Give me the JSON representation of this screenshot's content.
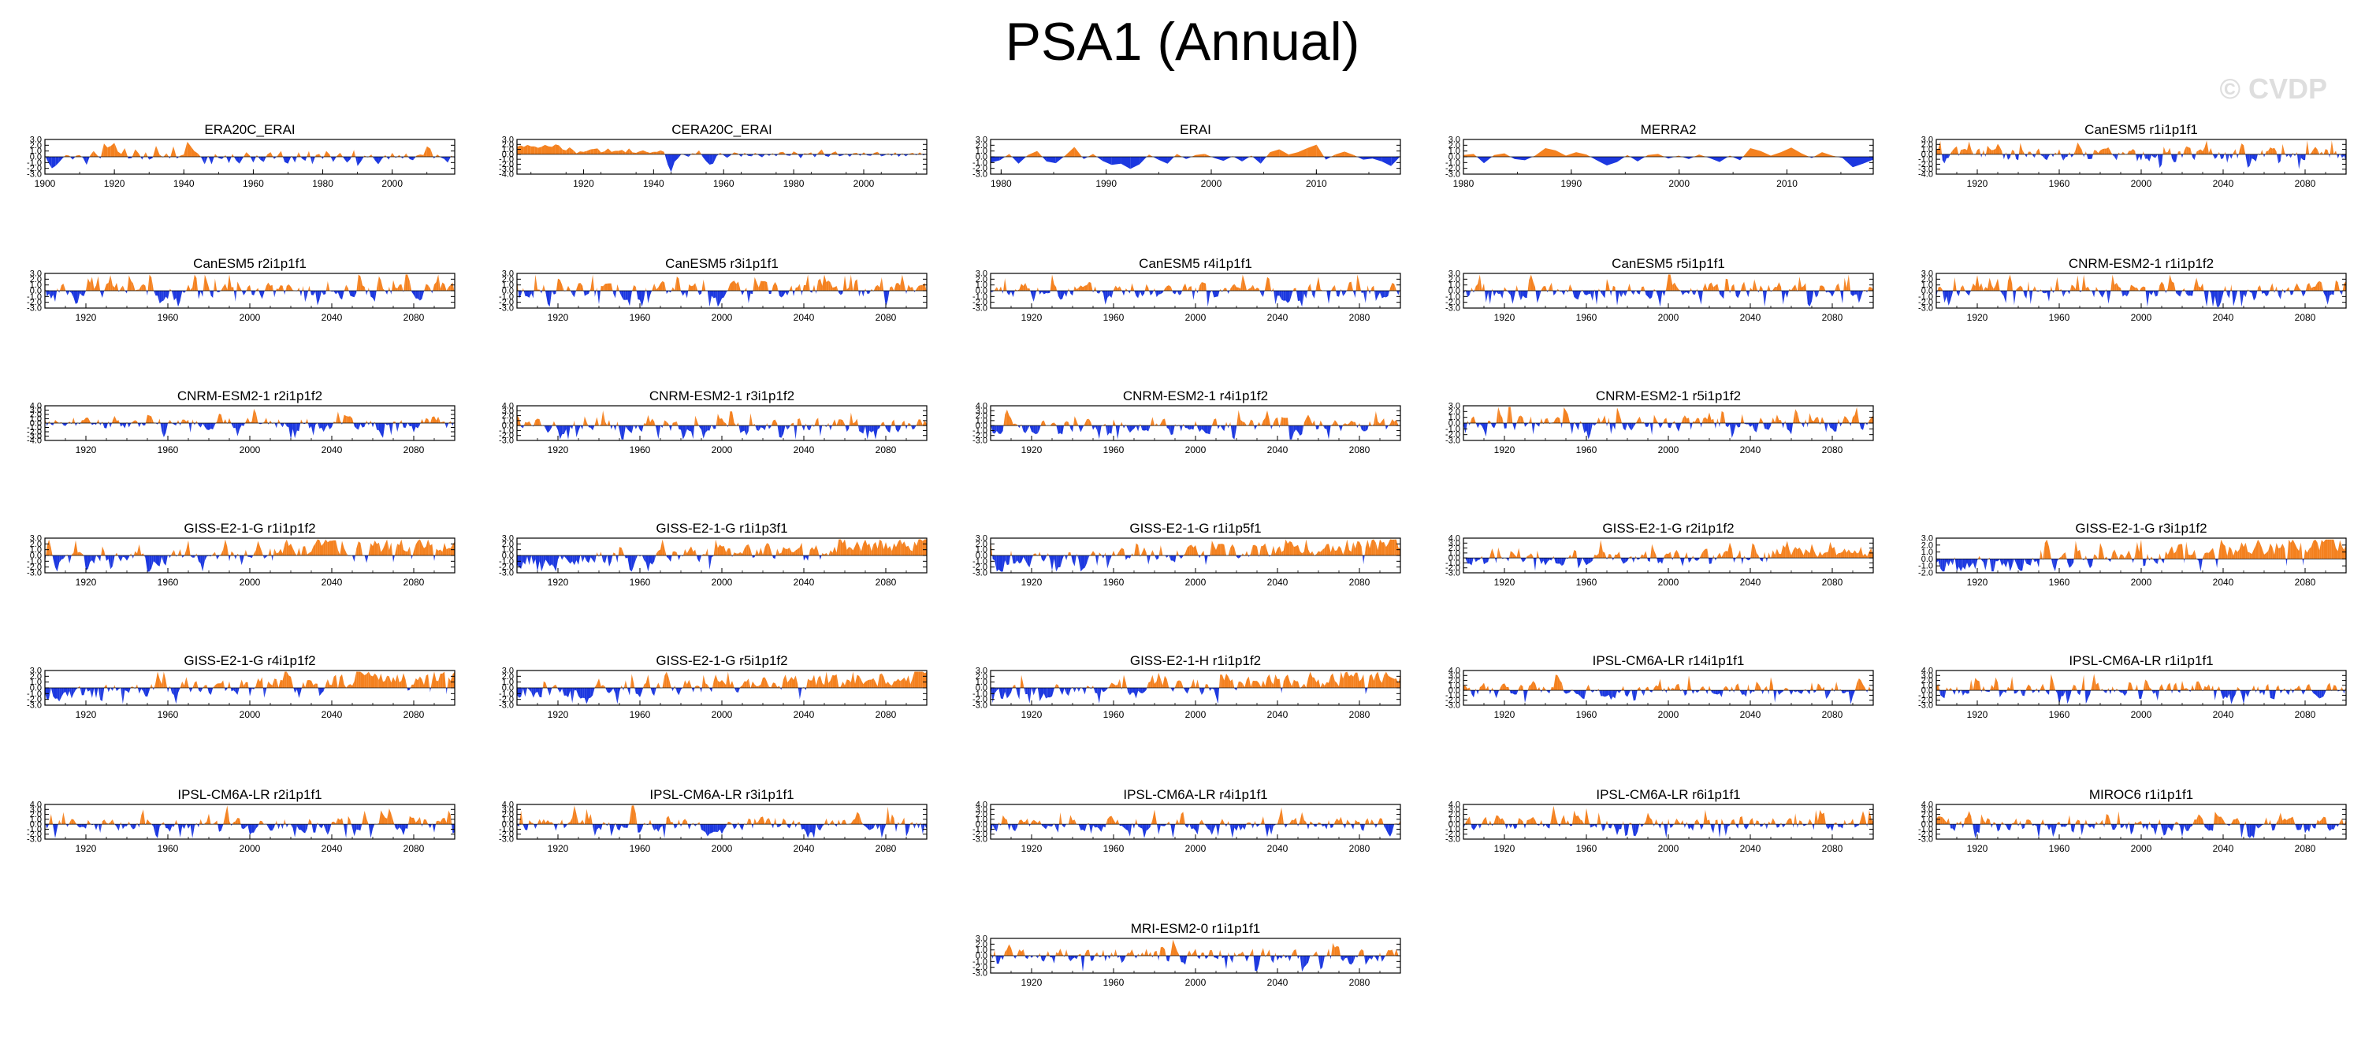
{
  "title": "PSA1 (Annual)",
  "watermark": "© CVDP",
  "colors": {
    "positive": "#f4811f",
    "negative": "#1c38e0",
    "frame": "#000000"
  },
  "chart_data": [
    {
      "type": "area",
      "title": "ERA20C_ERAI",
      "x_range": [
        1900,
        2018
      ],
      "xticks": [
        "1900",
        "1920",
        "1940",
        "1960",
        "1980",
        "2000"
      ],
      "ylim": [
        -3,
        3
      ],
      "yticks": [
        "3.0",
        "2.0",
        "1.0",
        "0.0",
        "-1.0",
        "-2.0",
        "-3.0"
      ],
      "values": [
        0.2,
        -1.0,
        -2.0,
        -1.6,
        -1.0,
        -0.3,
        0.3,
        0.2,
        -0.5,
        0.2,
        0.3,
        -0.2,
        -1.4,
        0.2,
        1.0,
        0.3,
        -0.3,
        2.3,
        1.6,
        1.9,
        2.4,
        0.9,
        0.5,
        1.5,
        -0.3,
        -0.2,
        1.3,
        0.6,
        -0.5,
        0.8,
        -0.5,
        -0.2,
        1.9,
        0.4,
        -0.1,
        0.6,
        -0.3,
        1.8,
        -0.3,
        0.2,
        0.4,
        2.6,
        1.8,
        1.0,
        0.6,
        -0.1,
        -1.3,
        0.2,
        -1.3,
        0.5,
        -0.2,
        -0.4,
        0.3,
        -1.1,
        0.5,
        -0.6,
        -1.2,
        -0.2,
        0.8,
        0.2,
        -1.0,
        0.3,
        -0.5,
        -0.9,
        0.4,
        0.8,
        -0.4,
        0.2,
        1.0,
        -0.9,
        -1.2,
        0.2,
        -1.0,
        0.8,
        -0.3,
        -0.7,
        1.0,
        -1.3,
        0.3,
        0.5,
        -0.4,
        1.0,
        0.4,
        -0.9,
        0.1,
        0.7,
        -0.2,
        -1.0,
        -0.4,
        1.2,
        -1.6,
        -0.8,
        0.2,
        -0.1,
        0.4,
        -0.6,
        -1.3,
        -0.4,
        0.3,
        -0.5,
        0.7,
        -0.2,
        0.3,
        -0.3,
        0.6,
        -0.4,
        -0.6,
        0.2,
        0.4,
        0.3,
        1.8,
        1.4,
        -0.3,
        0.4,
        -0.1,
        -0.4,
        -1.0,
        0.2,
        -0.2
      ]
    },
    {
      "type": "area",
      "title": "CERA20C_ERAI",
      "x_range": [
        1901,
        2018
      ],
      "xticks": [
        "1920",
        "1940",
        "1960",
        "1980",
        "2000"
      ],
      "ylim": [
        -4,
        3
      ],
      "yticks": [
        "3.0",
        "2.0",
        "1.0",
        "0.0",
        "-1.0",
        "-2.0",
        "-3.0",
        "-4.0"
      ],
      "values": [
        1.5,
        1.8,
        1.5,
        1.9,
        1.6,
        1.6,
        1.3,
        1.5,
        1.9,
        1.6,
        1.5,
        2.0,
        1.8,
        1.0,
        0.8,
        1.4,
        0.9,
        0.2,
        0.6,
        0.5,
        0.7,
        1.0,
        1.1,
        1.2,
        0.4,
        0.6,
        1.2,
        0.5,
        0.7,
        0.7,
        0.9,
        0.4,
        1.2,
        0.4,
        0.3,
        0.6,
        0.8,
        0.5,
        0.3,
        0.5,
        0.5,
        0.8,
        0.5,
        -2.0,
        -3.6,
        -1.5,
        -0.8,
        0.1,
        -0.2,
        -0.5,
        0.2,
        0.1,
        0.8,
        -0.5,
        -1.4,
        -2.1,
        -1.9,
        -0.4,
        0.3,
        -0.2,
        -0.7,
        -0.2,
        0.4,
        0.2,
        -0.5,
        0.3,
        -0.3,
        -0.4,
        0.3,
        -0.2,
        -0.6,
        0.1,
        -0.3,
        0.2,
        -0.4,
        0.4,
        0.5,
        -0.2,
        -0.3,
        0.6,
        0.2,
        -0.8,
        0.2,
        0.1,
        0.4,
        -0.6,
        0.3,
        1.0,
        -0.3,
        -0.5,
        0.3,
        0.6,
        -0.4,
        -0.2,
        0.2,
        -0.5,
        0.2,
        0.3,
        -0.3,
        0.4,
        -0.2,
        -0.3,
        0.3,
        0.5,
        -0.4,
        -0.2,
        0.2,
        -0.3,
        0.4,
        -0.5,
        0.2,
        -0.4,
        0.1,
        0.3,
        -0.2,
        0.4,
        -0.2,
        0.1
      ]
    },
    {
      "type": "area",
      "title": "ERAI",
      "x_range": [
        1979,
        2018
      ],
      "xticks": [
        "1980",
        "1990",
        "2000",
        "2010"
      ],
      "ylim": [
        -3,
        3
      ],
      "yticks": [
        "3.0",
        "2.0",
        "1.0",
        "0.0",
        "-1.0",
        "-2.0",
        "-3.0"
      ],
      "values": [
        -1.0,
        -0.6,
        0.5,
        -1.2,
        0.3,
        1.0,
        -0.8,
        -1.1,
        0.2,
        1.7,
        -0.4,
        0.5,
        -0.7,
        -1.4,
        -1.2,
        -2.1,
        -1.3,
        0.4,
        -0.5,
        -1.2,
        0.5,
        -0.4,
        0.3,
        0.5,
        -0.2,
        -0.7,
        0.1,
        -0.8,
        0.2,
        -1.2,
        0.8,
        1.3,
        0.4,
        0.8,
        1.5,
        2.1,
        -0.5,
        0.4,
        0.9,
        0.3,
        -0.5,
        -0.3,
        -0.8,
        -1.6,
        0.1
      ]
    },
    {
      "type": "area",
      "title": "MERRA2",
      "x_range": [
        1980,
        2018
      ],
      "xticks": [
        "1980",
        "1990",
        "2000",
        "2010"
      ],
      "ylim": [
        -3,
        3
      ],
      "yticks": [
        "3.0",
        "2.0",
        "1.0",
        "0.0",
        "-1.0",
        "-2.0",
        "-3.0"
      ],
      "values": [
        0.3,
        0.5,
        -1.1,
        0.3,
        0.6,
        -0.4,
        -0.6,
        0.2,
        1.5,
        1.1,
        0.2,
        0.8,
        0.4,
        -0.6,
        -1.5,
        -0.9,
        0.3,
        -0.8,
        0.3,
        0.5,
        -0.3,
        0.2,
        -0.4,
        0.4,
        -0.2,
        -0.9,
        0.2,
        -0.6,
        1.5,
        1.0,
        0.2,
        0.8,
        1.6,
        0.6,
        -0.2,
        0.8,
        0.2,
        -0.2,
        -1.8,
        -1.2,
        -0.5
      ]
    },
    {
      "type": "area",
      "title": "CanESM5 r1i1p1f1",
      "x_range": [
        1900,
        2100
      ],
      "xticks": [
        "1920",
        "1960",
        "2000",
        "2040",
        "2080"
      ],
      "ylim": [
        -4,
        3
      ],
      "yticks": [
        "3.0",
        "2.0",
        "1.0",
        "0.0",
        "-1.0",
        "-2.0",
        "-3.0",
        "-4.0"
      ],
      "seed": 5,
      "amp": 1.05,
      "trend": 0.0
    },
    {
      "type": "area",
      "title": "CanESM5 r2i1p1f1",
      "x_range": [
        1900,
        2100
      ],
      "xticks": [
        "1920",
        "1960",
        "2000",
        "2040",
        "2080"
      ],
      "ylim": [
        -3,
        3
      ],
      "yticks": [
        "3.0",
        "2.0",
        "1.0",
        "0.0",
        "-1.0",
        "-2.0",
        "-3.0"
      ],
      "seed": 6,
      "amp": 1.05,
      "trend": 0.0
    },
    {
      "type": "area",
      "title": "CanESM5 r3i1p1f1",
      "x_range": [
        1900,
        2100
      ],
      "xticks": [
        "1920",
        "1960",
        "2000",
        "2040",
        "2080"
      ],
      "ylim": [
        -3,
        3
      ],
      "yticks": [
        "3.0",
        "2.0",
        "1.0",
        "0.0",
        "-1.0",
        "-2.0",
        "-3.0"
      ],
      "seed": 7,
      "amp": 1.05,
      "trend": 0.0
    },
    {
      "type": "area",
      "title": "CanESM5 r4i1p1f1",
      "x_range": [
        1900,
        2100
      ],
      "xticks": [
        "1920",
        "1960",
        "2000",
        "2040",
        "2080"
      ],
      "ylim": [
        -3,
        3
      ],
      "yticks": [
        "3.0",
        "2.0",
        "1.0",
        "0.0",
        "-1.0",
        "-2.0",
        "-3.0"
      ],
      "seed": 8,
      "amp": 1.05,
      "trend": 0.0
    },
    {
      "type": "area",
      "title": "CanESM5 r5i1p1f1",
      "x_range": [
        1900,
        2100
      ],
      "xticks": [
        "1920",
        "1960",
        "2000",
        "2040",
        "2080"
      ],
      "ylim": [
        -3,
        3
      ],
      "yticks": [
        "3.0",
        "2.0",
        "1.0",
        "0.0",
        "-1.0",
        "-2.0",
        "-3.0"
      ],
      "seed": 9,
      "amp": 1.05,
      "trend": 0.0
    },
    {
      "type": "area",
      "title": "CNRM-ESM2-1 r1i1p1f2",
      "x_range": [
        1900,
        2100
      ],
      "xticks": [
        "1920",
        "1960",
        "2000",
        "2040",
        "2080"
      ],
      "ylim": [
        -3,
        3
      ],
      "yticks": [
        "3.0",
        "2.0",
        "1.0",
        "0.0",
        "-1.0",
        "-2.0",
        "-3.0"
      ],
      "seed": 10,
      "amp": 1.05,
      "trend": 0.0
    },
    {
      "type": "area",
      "title": "CNRM-ESM2-1 r2i1p1f2",
      "x_range": [
        1900,
        2100
      ],
      "xticks": [
        "1920",
        "1960",
        "2000",
        "2040",
        "2080"
      ],
      "ylim": [
        -4,
        4
      ],
      "yticks": [
        "4.0",
        "3.0",
        "2.0",
        "1.0",
        "0.0",
        "-1.0",
        "-2.0",
        "-3.0",
        "-4.0"
      ],
      "seed": 11,
      "amp": 1.1,
      "trend": 0.0
    },
    {
      "type": "area",
      "title": "CNRM-ESM2-1 r3i1p1f2",
      "x_range": [
        1900,
        2100
      ],
      "xticks": [
        "1920",
        "1960",
        "2000",
        "2040",
        "2080"
      ],
      "ylim": [
        -3,
        4
      ],
      "yticks": [
        "4.0",
        "3.0",
        "2.0",
        "1.0",
        "0.0",
        "-1.0",
        "-2.0",
        "-3.0"
      ],
      "seed": 12,
      "amp": 1.05,
      "trend": 0.0
    },
    {
      "type": "area",
      "title": "CNRM-ESM2-1 r4i1p1f2",
      "x_range": [
        1900,
        2100
      ],
      "xticks": [
        "1920",
        "1960",
        "2000",
        "2040",
        "2080"
      ],
      "ylim": [
        -3,
        4
      ],
      "yticks": [
        "4.0",
        "3.0",
        "2.0",
        "1.0",
        "0.0",
        "-1.0",
        "-2.0",
        "-3.0"
      ],
      "seed": 13,
      "amp": 1.05,
      "trend": 0.0
    },
    {
      "type": "area",
      "title": "CNRM-ESM2-1 r5i1p1f2",
      "x_range": [
        1900,
        2100
      ],
      "xticks": [
        "1920",
        "1960",
        "2000",
        "2040",
        "2080"
      ],
      "ylim": [
        -3,
        3
      ],
      "yticks": [
        "3.0",
        "2.0",
        "1.0",
        "0.0",
        "-1.0",
        "-2.0",
        "-3.0"
      ],
      "seed": 14,
      "amp": 1.05,
      "trend": 0.0
    },
    {
      "type": "area",
      "title": "GISS-E2-1-G r1i1p1f2",
      "x_range": [
        1900,
        2100
      ],
      "xticks": [
        "1920",
        "1960",
        "2000",
        "2040",
        "2080"
      ],
      "ylim": [
        -3,
        3
      ],
      "yticks": [
        "3.0",
        "2.0",
        "1.0",
        "0.0",
        "-1.0",
        "-2.0",
        "-3.0"
      ],
      "seed": 15,
      "amp": 1.0,
      "trend": 1.0
    },
    {
      "type": "area",
      "title": "GISS-E2-1-G r1i1p3f1",
      "x_range": [
        1900,
        2100
      ],
      "xticks": [
        "1920",
        "1960",
        "2000",
        "2040",
        "2080"
      ],
      "ylim": [
        -3,
        3
      ],
      "yticks": [
        "3.0",
        "2.0",
        "1.0",
        "0.0",
        "-1.0",
        "-2.0",
        "-3.0"
      ],
      "seed": 16,
      "amp": 1.0,
      "trend": 0.9
    },
    {
      "type": "area",
      "title": "GISS-E2-1-G r1i1p5f1",
      "x_range": [
        1900,
        2100
      ],
      "xticks": [
        "1920",
        "1960",
        "2000",
        "2040",
        "2080"
      ],
      "ylim": [
        -3,
        3
      ],
      "yticks": [
        "3.0",
        "2.0",
        "1.0",
        "0.0",
        "-1.0",
        "-2.0",
        "-3.0"
      ],
      "seed": 17,
      "amp": 1.0,
      "trend": 1.0
    },
    {
      "type": "area",
      "title": "GISS-E2-1-G r2i1p1f2",
      "x_range": [
        1900,
        2100
      ],
      "xticks": [
        "1920",
        "1960",
        "2000",
        "2040",
        "2080"
      ],
      "ylim": [
        -3,
        4
      ],
      "yticks": [
        "4.0",
        "3.0",
        "2.0",
        "1.0",
        "0.0",
        "-1.0",
        "-2.0",
        "-3.0"
      ],
      "seed": 18,
      "amp": 1.0,
      "trend": 0.6
    },
    {
      "type": "area",
      "title": "GISS-E2-1-G r3i1p1f2",
      "x_range": [
        1900,
        2100
      ],
      "xticks": [
        "1920",
        "1960",
        "2000",
        "2040",
        "2080"
      ],
      "ylim": [
        -2,
        3
      ],
      "yticks": [
        "3.0",
        "2.0",
        "1.0",
        "0.0",
        "-1.0",
        "-2.0"
      ],
      "seed": 19,
      "amp": 0.9,
      "trend": 1.1
    },
    {
      "type": "area",
      "title": "GISS-E2-1-G r4i1p1f2",
      "x_range": [
        1900,
        2100
      ],
      "xticks": [
        "1920",
        "1960",
        "2000",
        "2040",
        "2080"
      ],
      "ylim": [
        -3,
        3
      ],
      "yticks": [
        "3.0",
        "2.0",
        "1.0",
        "0.0",
        "-1.0",
        "-2.0",
        "-3.0"
      ],
      "seed": 20,
      "amp": 1.0,
      "trend": 1.0
    },
    {
      "type": "area",
      "title": "GISS-E2-1-G r5i1p1f2",
      "x_range": [
        1900,
        2100
      ],
      "xticks": [
        "1920",
        "1960",
        "2000",
        "2040",
        "2080"
      ],
      "ylim": [
        -3,
        3
      ],
      "yticks": [
        "3.0",
        "2.0",
        "1.0",
        "0.0",
        "-1.0",
        "-2.0",
        "-3.0"
      ],
      "seed": 21,
      "amp": 1.0,
      "trend": 1.0
    },
    {
      "type": "area",
      "title": "GISS-E2-1-H r1i1p1f2",
      "x_range": [
        1900,
        2100
      ],
      "xticks": [
        "1920",
        "1960",
        "2000",
        "2040",
        "2080"
      ],
      "ylim": [
        -3,
        3
      ],
      "yticks": [
        "3.0",
        "2.0",
        "1.0",
        "0.0",
        "-1.0",
        "-2.0",
        "-3.0"
      ],
      "seed": 22,
      "amp": 0.95,
      "trend": 1.0
    },
    {
      "type": "area",
      "title": "IPSL-CM6A-LR r14i1p1f1",
      "x_range": [
        1900,
        2100
      ],
      "xticks": [
        "1920",
        "1960",
        "2000",
        "2040",
        "2080"
      ],
      "ylim": [
        -3,
        4
      ],
      "yticks": [
        "4.0",
        "3.0",
        "2.0",
        "1.0",
        "0.0",
        "-1.0",
        "-2.0",
        "-3.0"
      ],
      "seed": 23,
      "amp": 1.05,
      "trend": 0.0
    },
    {
      "type": "area",
      "title": "IPSL-CM6A-LR r1i1p1f1",
      "x_range": [
        1900,
        2100
      ],
      "xticks": [
        "1920",
        "1960",
        "2000",
        "2040",
        "2080"
      ],
      "ylim": [
        -3,
        4
      ],
      "yticks": [
        "4.0",
        "3.0",
        "2.0",
        "1.0",
        "0.0",
        "-1.0",
        "-2.0",
        "-3.0"
      ],
      "seed": 24,
      "amp": 1.05,
      "trend": 0.0
    },
    {
      "type": "area",
      "title": "IPSL-CM6A-LR r2i1p1f1",
      "x_range": [
        1900,
        2100
      ],
      "xticks": [
        "1920",
        "1960",
        "2000",
        "2040",
        "2080"
      ],
      "ylim": [
        -3,
        4
      ],
      "yticks": [
        "4.0",
        "3.0",
        "2.0",
        "1.0",
        "0.0",
        "-1.0",
        "-2.0",
        "-3.0"
      ],
      "seed": 25,
      "amp": 1.05,
      "trend": 0.0
    },
    {
      "type": "area",
      "title": "IPSL-CM6A-LR r3i1p1f1",
      "x_range": [
        1900,
        2100
      ],
      "xticks": [
        "1920",
        "1960",
        "2000",
        "2040",
        "2080"
      ],
      "ylim": [
        -3,
        4
      ],
      "yticks": [
        "4.0",
        "3.0",
        "2.0",
        "1.0",
        "0.0",
        "-1.0",
        "-2.0",
        "-3.0"
      ],
      "seed": 26,
      "amp": 1.05,
      "trend": 0.0
    },
    {
      "type": "area",
      "title": "IPSL-CM6A-LR r4i1p1f1",
      "x_range": [
        1900,
        2100
      ],
      "xticks": [
        "1920",
        "1960",
        "2000",
        "2040",
        "2080"
      ],
      "ylim": [
        -3,
        4
      ],
      "yticks": [
        "4.0",
        "3.0",
        "2.0",
        "1.0",
        "0.0",
        "-1.0",
        "-2.0",
        "-3.0"
      ],
      "seed": 27,
      "amp": 1.05,
      "trend": 0.0
    },
    {
      "type": "area",
      "title": "IPSL-CM6A-LR r6i1p1f1",
      "x_range": [
        1900,
        2100
      ],
      "xticks": [
        "1920",
        "1960",
        "2000",
        "2040",
        "2080"
      ],
      "ylim": [
        -3,
        4
      ],
      "yticks": [
        "4.0",
        "3.0",
        "2.0",
        "1.0",
        "0.0",
        "-1.0",
        "-2.0",
        "-3.0"
      ],
      "seed": 28,
      "amp": 1.05,
      "trend": 0.0
    },
    {
      "type": "area",
      "title": "MIROC6 r1i1p1f1",
      "x_range": [
        1900,
        2100
      ],
      "xticks": [
        "1920",
        "1960",
        "2000",
        "2040",
        "2080"
      ],
      "ylim": [
        -3,
        4
      ],
      "yticks": [
        "4.0",
        "3.0",
        "2.0",
        "1.0",
        "0.0",
        "-1.0",
        "-2.0",
        "-3.0"
      ],
      "seed": 29,
      "amp": 1.05,
      "trend": 0.0
    },
    {
      "type": "area",
      "title": "MRI-ESM2-0 r1i1p1f1",
      "x_range": [
        1900,
        2100
      ],
      "xticks": [
        "1920",
        "1960",
        "2000",
        "2040",
        "2080"
      ],
      "ylim": [
        -3,
        3
      ],
      "yticks": [
        "3.0",
        "2.0",
        "1.0",
        "0.0",
        "-1.0",
        "-2.0",
        "-3.0"
      ],
      "seed": 30,
      "amp": 1.05,
      "trend": 0.0
    }
  ]
}
